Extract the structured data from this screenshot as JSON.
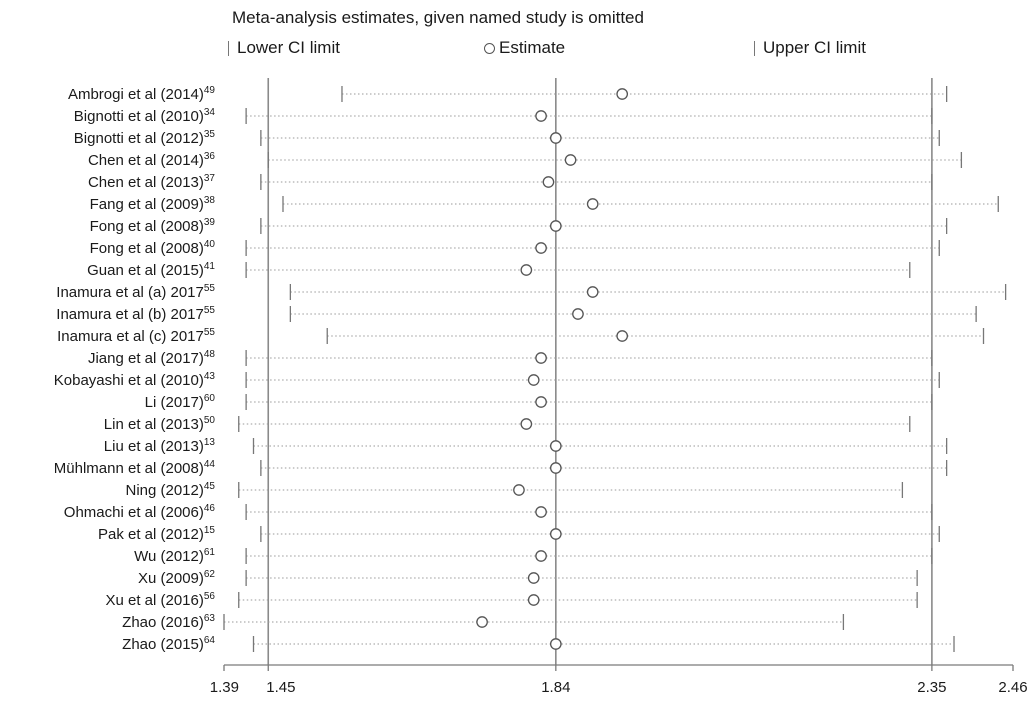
{
  "chart_data": {
    "type": "forest",
    "title": "Meta-analysis estimates, given named study is omitted",
    "legend": {
      "lower": "Lower CI limit",
      "estimate": "Estimate",
      "upper": "Upper CI limit"
    },
    "xlim": [
      1.39,
      2.46
    ],
    "xticks": [
      {
        "value": 1.39,
        "label": "1.39"
      },
      {
        "value": 1.45,
        "label": "1.45"
      },
      {
        "value": 1.84,
        "label": "1.84"
      },
      {
        "value": 2.35,
        "label": "2.35"
      },
      {
        "value": 2.46,
        "label": "2.46"
      }
    ],
    "reference_lines": [
      1.45,
      1.84,
      2.35
    ],
    "studies": [
      {
        "name": "Ambrogi et al (2014)",
        "ref": "49",
        "lower": 1.55,
        "est": 1.93,
        "upper": 2.37
      },
      {
        "name": "Bignotti et al (2010)",
        "ref": "34",
        "lower": 1.42,
        "est": 1.82,
        "upper": 2.35
      },
      {
        "name": "Bignotti et al (2012)",
        "ref": "35",
        "lower": 1.44,
        "est": 1.84,
        "upper": 2.36
      },
      {
        "name": "Chen et al (2014)",
        "ref": "36",
        "lower": 1.45,
        "est": 1.86,
        "upper": 2.39
      },
      {
        "name": "Chen et al (2013)",
        "ref": "37",
        "lower": 1.44,
        "est": 1.83,
        "upper": 2.35
      },
      {
        "name": "Fang et al (2009)",
        "ref": "38",
        "lower": 1.47,
        "est": 1.89,
        "upper": 2.44
      },
      {
        "name": "Fong et al (2008)",
        "ref": "39",
        "lower": 1.44,
        "est": 1.84,
        "upper": 2.37
      },
      {
        "name": "Fong et al (2008)",
        "ref": "40",
        "lower": 1.42,
        "est": 1.82,
        "upper": 2.36
      },
      {
        "name": "Guan et al (2015)",
        "ref": "41",
        "lower": 1.42,
        "est": 1.8,
        "upper": 2.32
      },
      {
        "name": "Inamura et al (a) 2017",
        "ref": "55",
        "lower": 1.48,
        "est": 1.89,
        "upper": 2.45
      },
      {
        "name": "Inamura et al (b) 2017",
        "ref": "55",
        "lower": 1.48,
        "est": 1.87,
        "upper": 2.41
      },
      {
        "name": "Inamura et al (c) 2017",
        "ref": "55",
        "lower": 1.53,
        "est": 1.93,
        "upper": 2.42
      },
      {
        "name": "Jiang et al (2017)",
        "ref": "48",
        "lower": 1.42,
        "est": 1.82,
        "upper": 2.35
      },
      {
        "name": "Kobayashi et al (2010)",
        "ref": "43",
        "lower": 1.42,
        "est": 1.81,
        "upper": 2.36
      },
      {
        "name": "Li (2017)",
        "ref": "60",
        "lower": 1.42,
        "est": 1.82,
        "upper": 2.35
      },
      {
        "name": "Lin et al (2013)",
        "ref": "50",
        "lower": 1.41,
        "est": 1.8,
        "upper": 2.32
      },
      {
        "name": "Liu et al (2013)",
        "ref": "13",
        "lower": 1.43,
        "est": 1.84,
        "upper": 2.37
      },
      {
        "name": "Mühlmann et al (2008)",
        "ref": "44",
        "lower": 1.44,
        "est": 1.84,
        "upper": 2.37
      },
      {
        "name": "Ning (2012)",
        "ref": "45",
        "lower": 1.41,
        "est": 1.79,
        "upper": 2.31
      },
      {
        "name": "Ohmachi et al (2006)",
        "ref": "46",
        "lower": 1.42,
        "est": 1.82,
        "upper": 2.35
      },
      {
        "name": "Pak et al (2012)",
        "ref": "15",
        "lower": 1.44,
        "est": 1.84,
        "upper": 2.36
      },
      {
        "name": "Wu (2012)",
        "ref": "61",
        "lower": 1.42,
        "est": 1.82,
        "upper": 2.35
      },
      {
        "name": "Xu (2009)",
        "ref": "62",
        "lower": 1.42,
        "est": 1.81,
        "upper": 2.33
      },
      {
        "name": "Xu et al (2016)",
        "ref": "56",
        "lower": 1.41,
        "est": 1.81,
        "upper": 2.33
      },
      {
        "name": "Zhao (2016)",
        "ref": "63",
        "lower": 1.39,
        "est": 1.74,
        "upper": 2.23
      },
      {
        "name": "Zhao (2015)",
        "ref": "64",
        "lower": 1.43,
        "est": 1.84,
        "upper": 2.38
      }
    ]
  }
}
